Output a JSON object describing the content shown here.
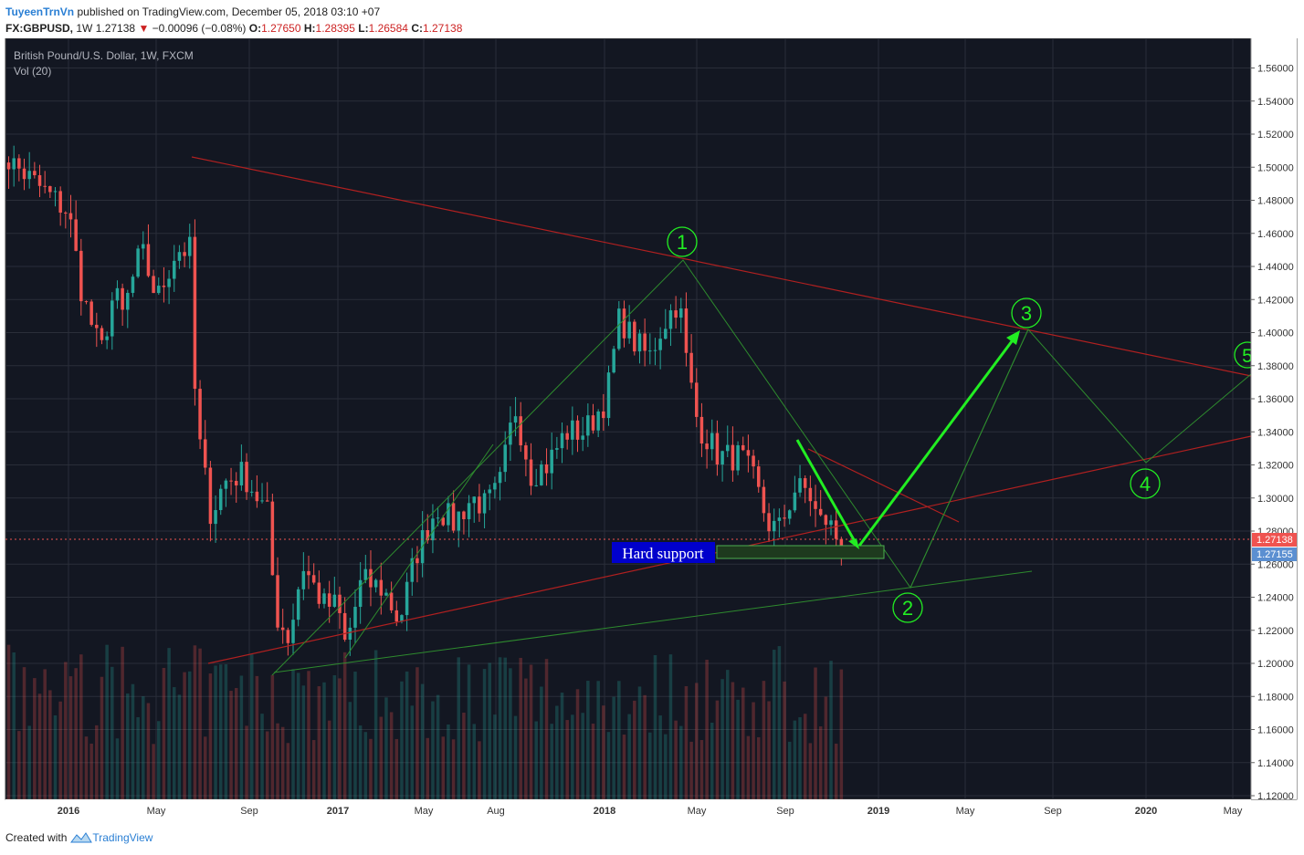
{
  "header": {
    "author": "TuyeenTrnVn",
    "published": "published on TradingView.com, December 05, 2018 03:10 +07",
    "symbol": "FX:GBPUSD,",
    "interval": "1W",
    "last": "1.27138",
    "change": "−0.00096 (−0.08%)",
    "open_label": "O:",
    "open": "1.27650",
    "high_label": "H:",
    "high": "1.28395",
    "low_label": "L:",
    "low": "1.26584",
    "close_label": "C:",
    "close": "1.27138"
  },
  "footer": {
    "created": "Created with",
    "brand": "TradingView"
  },
  "chart_data": {
    "type": "candlestick",
    "title": "British Pound/U.S. Dollar, 1W, FXCM",
    "indicator": "Vol (20)",
    "ylim": [
      1.11,
      1.57
    ],
    "y_ticks": [
      "1.56000",
      "1.54000",
      "1.52000",
      "1.50000",
      "1.48000",
      "1.46000",
      "1.44000",
      "1.42000",
      "1.40000",
      "1.38000",
      "1.36000",
      "1.34000",
      "1.32000",
      "1.30000",
      "1.28000",
      "1.26000",
      "1.24000",
      "1.22000",
      "1.20000",
      "1.18000",
      "1.16000",
      "1.14000",
      "1.12000"
    ],
    "x_ticks": [
      "2016",
      "May",
      "Sep",
      "2017",
      "May",
      "Aug",
      "2018",
      "May",
      "Sep",
      "2019",
      "May",
      "Sep",
      "2020",
      "May"
    ],
    "last_price": "1.27138",
    "second_price": "1.27155",
    "colors": {
      "up": "#26a69a",
      "down": "#ef5350",
      "background": "#131722",
      "grid": "#2a2e39",
      "pattern": "#2e8b2e",
      "arrow": "#22ee22",
      "trendline": "#b02020"
    },
    "anchors": [
      {
        "t": -0.28,
        "p": 1.512
      },
      {
        "t": 0,
        "p": 1.473
      },
      {
        "t": 0.05,
        "p": 1.424
      },
      {
        "t": 0.12,
        "p": 1.387
      },
      {
        "t": 0.17,
        "p": 1.425
      },
      {
        "t": 0.2,
        "p": 1.41
      },
      {
        "t": 0.27,
        "p": 1.45
      },
      {
        "t": 0.33,
        "p": 1.42
      },
      {
        "t": 0.4,
        "p": 1.45
      },
      {
        "t": 0.46,
        "p": 1.45
      },
      {
        "t": 0.47,
        "p": 1.365
      },
      {
        "t": 0.49,
        "p": 1.33
      },
      {
        "t": 0.53,
        "p": 1.29
      },
      {
        "t": 0.58,
        "p": 1.31
      },
      {
        "t": 0.65,
        "p": 1.315
      },
      {
        "t": 0.74,
        "p": 1.29
      },
      {
        "t": 0.77,
        "p": 1.23
      },
      {
        "t": 0.82,
        "p": 1.215
      },
      {
        "t": 0.87,
        "p": 1.26
      },
      {
        "t": 0.95,
        "p": 1.235
      },
      {
        "t": 1.0,
        "p": 1.235
      },
      {
        "t": 1.03,
        "p": 1.21
      },
      {
        "t": 1.09,
        "p": 1.25
      },
      {
        "t": 1.17,
        "p": 1.245
      },
      {
        "t": 1.23,
        "p": 1.225
      },
      {
        "t": 1.29,
        "p": 1.265
      },
      {
        "t": 1.37,
        "p": 1.295
      },
      {
        "t": 1.43,
        "p": 1.285
      },
      {
        "t": 1.5,
        "p": 1.3
      },
      {
        "t": 1.55,
        "p": 1.295
      },
      {
        "t": 1.6,
        "p": 1.305
      },
      {
        "t": 1.66,
        "p": 1.355
      },
      {
        "t": 1.72,
        "p": 1.315
      },
      {
        "t": 1.78,
        "p": 1.32
      },
      {
        "t": 1.85,
        "p": 1.34
      },
      {
        "t": 1.92,
        "p": 1.34
      },
      {
        "t": 2.0,
        "p": 1.36
      },
      {
        "t": 2.05,
        "p": 1.41
      },
      {
        "t": 2.1,
        "p": 1.395
      },
      {
        "t": 2.16,
        "p": 1.385
      },
      {
        "t": 2.21,
        "p": 1.405
      },
      {
        "t": 2.27,
        "p": 1.42
      },
      {
        "t": 2.3,
        "p": 1.38
      },
      {
        "t": 2.34,
        "p": 1.345
      },
      {
        "t": 2.42,
        "p": 1.325
      },
      {
        "t": 2.5,
        "p": 1.325
      },
      {
        "t": 2.55,
        "p": 1.31
      },
      {
        "t": 2.6,
        "p": 1.285
      },
      {
        "t": 2.64,
        "p": 1.28
      },
      {
        "t": 2.7,
        "p": 1.305
      },
      {
        "t": 2.75,
        "p": 1.305
      },
      {
        "t": 2.79,
        "p": 1.285
      },
      {
        "t": 2.82,
        "p": 1.287
      },
      {
        "t": 2.87,
        "p": 1.272
      }
    ],
    "annotations": {
      "wave_labels": [
        "1",
        "2",
        "3",
        "4",
        "5"
      ],
      "support_label": "Hard support"
    }
  }
}
